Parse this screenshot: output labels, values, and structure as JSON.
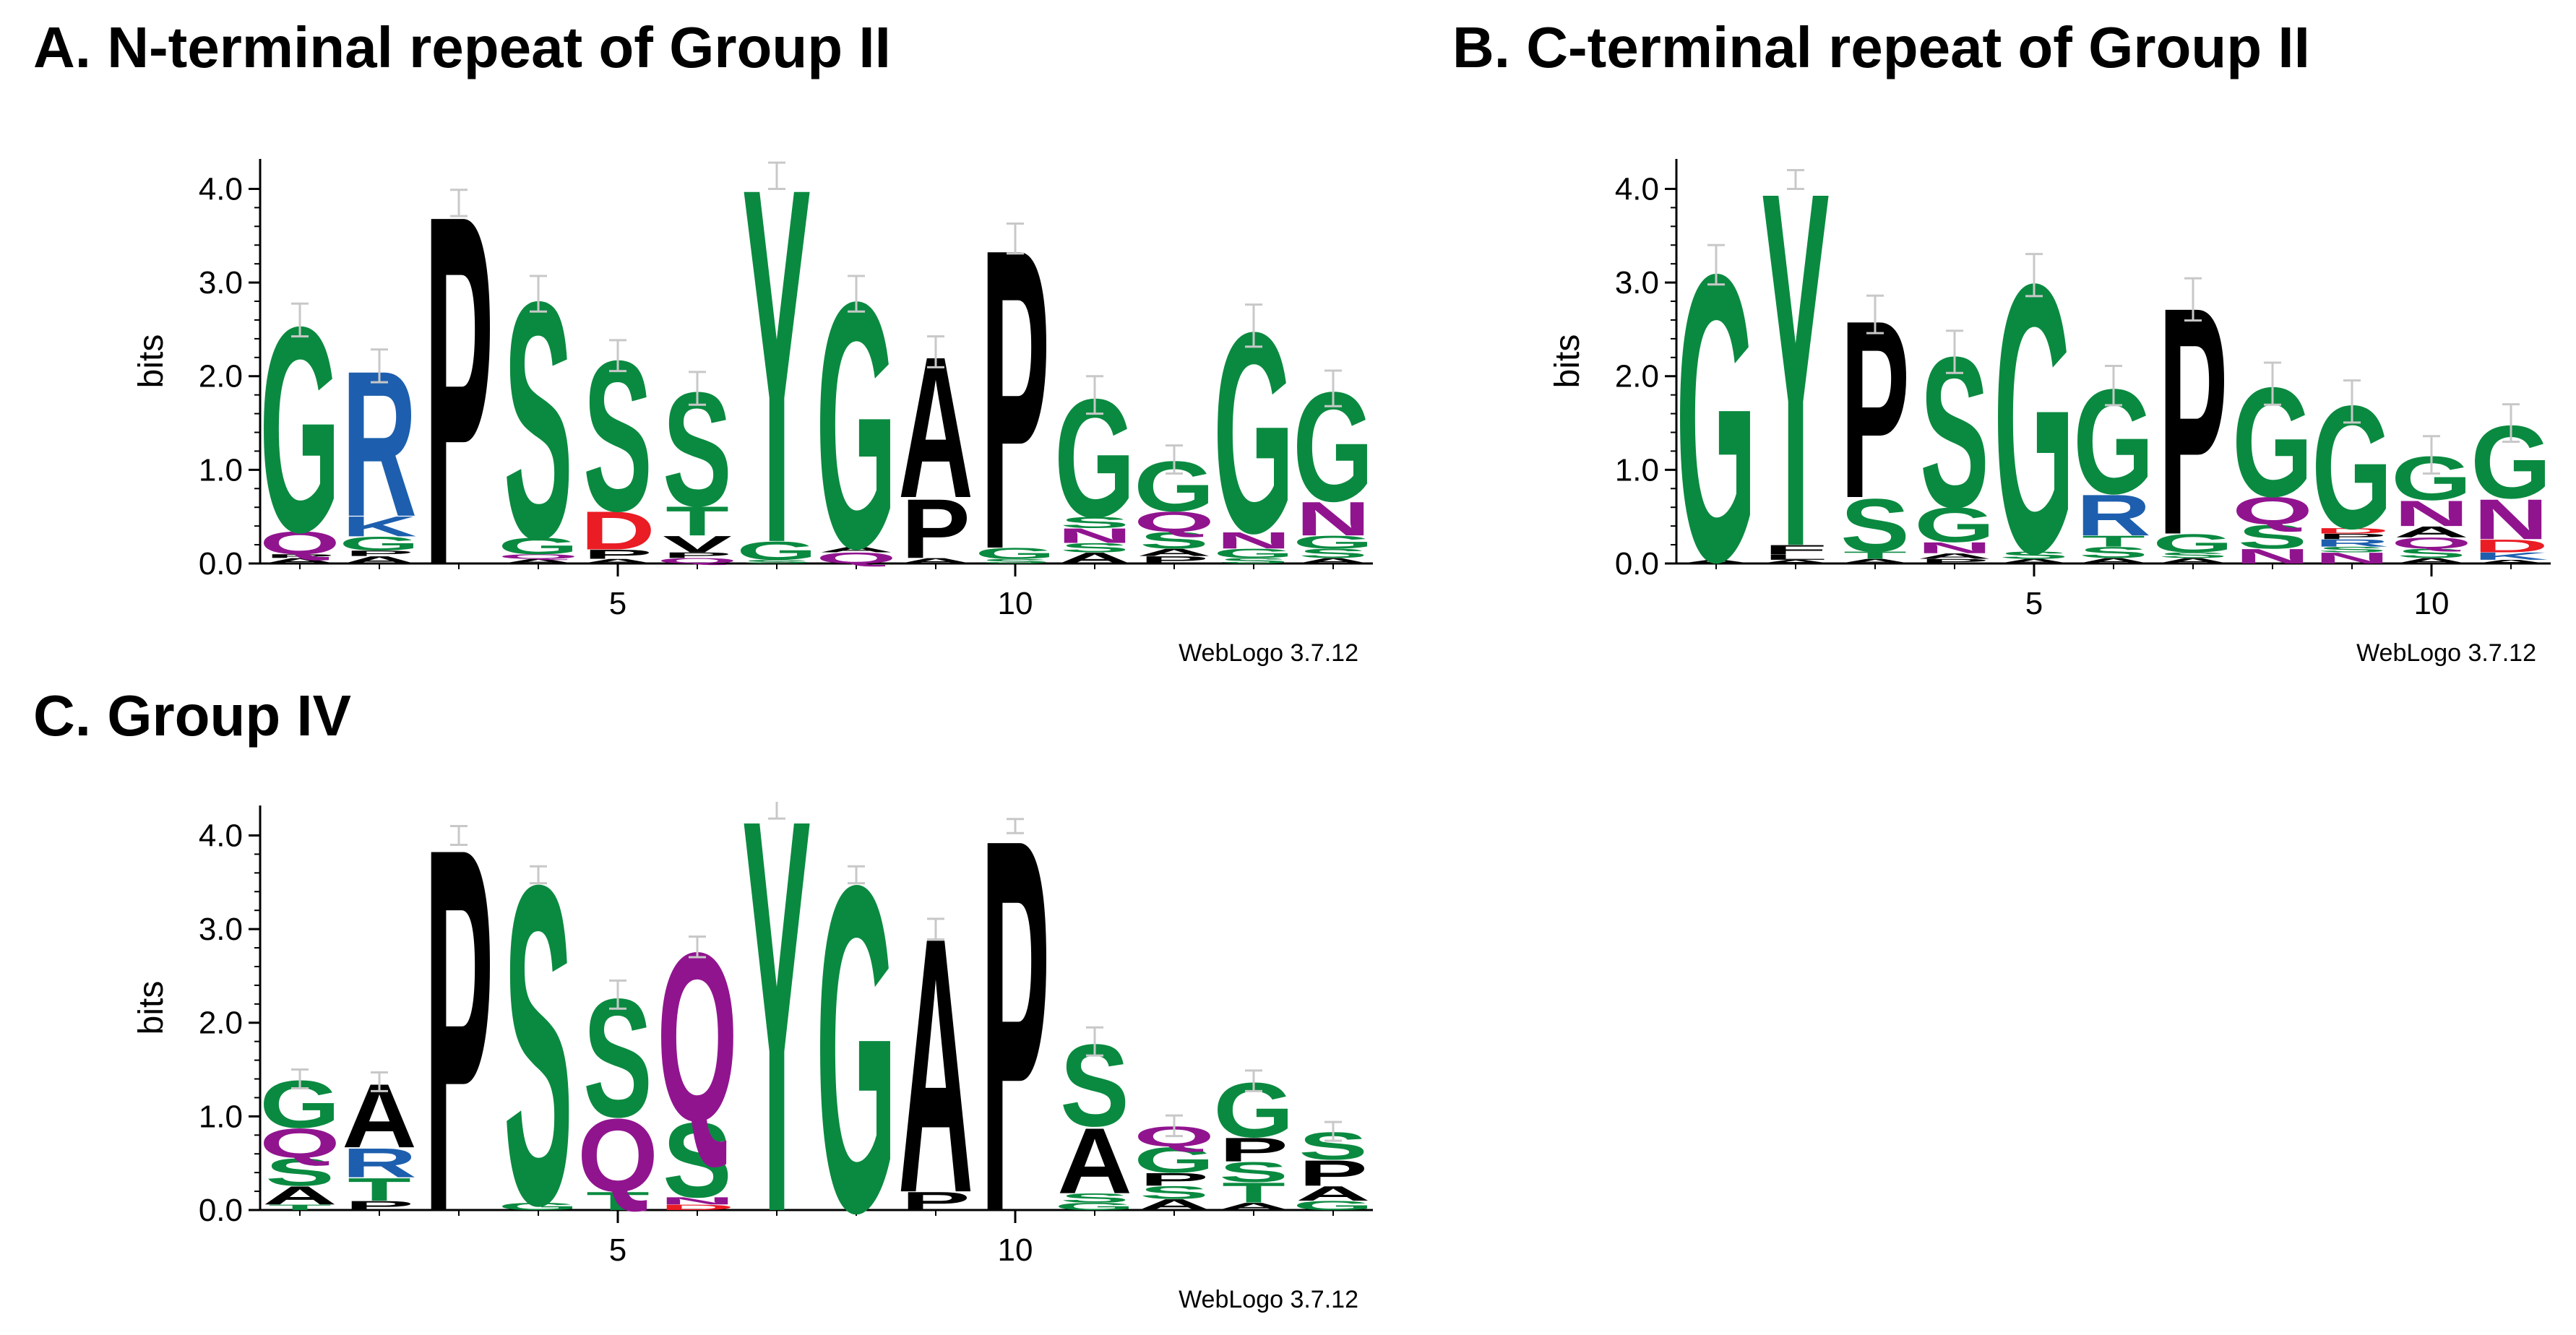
{
  "titles": {
    "a": "A. N-terminal repeat of Group II",
    "b": "B. C-terminal repeat of Group II",
    "c": "C. Group IV"
  },
  "colors": {
    "green": "#0a8a40",
    "black": "#000000",
    "blue": "#1d5fae",
    "purple": "#91148f",
    "red": "#ea1c24",
    "errorbar": "#c8c8c8"
  },
  "color_map": {
    "G": "green",
    "S": "green",
    "T": "green",
    "Y": "green",
    "C": "green",
    "P": "black",
    "A": "black",
    "V": "black",
    "L": "black",
    "I": "black",
    "F": "black",
    "M": "black",
    "W": "black",
    "R": "blue",
    "K": "blue",
    "H": "blue",
    "Q": "purple",
    "N": "purple",
    "D": "red",
    "E": "red"
  },
  "chart_data": [
    {
      "type": "sequence-logo",
      "ylabel": "bits",
      "ylim": [
        0,
        4.32
      ],
      "yticks": [
        "0.0",
        "1.0",
        "2.0",
        "3.0",
        "4.0"
      ],
      "xticks": [
        "5",
        "10"
      ],
      "xtick_positions": [
        5,
        10
      ],
      "footer": "WebLogo 3.7.12",
      "positions": [
        {
          "error": 0.35,
          "stack": [
            [
              "A",
              0.06
            ],
            [
              "P",
              0.04
            ],
            [
              "Q",
              0.25
            ],
            [
              "G",
              2.25
            ]
          ]
        },
        {
          "error": 0.35,
          "stack": [
            [
              "A",
              0.08
            ],
            [
              "P",
              0.06
            ],
            [
              "G",
              0.15
            ],
            [
              "K",
              0.22
            ],
            [
              "R",
              1.6
            ]
          ]
        },
        {
          "error": 0.28,
          "stack": [
            [
              "P",
              3.85
            ]
          ]
        },
        {
          "error": 0.38,
          "stack": [
            [
              "A",
              0.05
            ],
            [
              "Q",
              0.05
            ],
            [
              "G",
              0.18
            ],
            [
              "S",
              2.6
            ]
          ]
        },
        {
          "error": 0.33,
          "stack": [
            [
              "A",
              0.05
            ],
            [
              "P",
              0.1
            ],
            [
              "D",
              0.42
            ],
            [
              "S",
              1.65
            ]
          ]
        },
        {
          "error": 0.35,
          "stack": [
            [
              "Q",
              0.06
            ],
            [
              "P",
              0.06
            ],
            [
              "V",
              0.18
            ],
            [
              "T",
              0.32
            ],
            [
              "S",
              1.25
            ]
          ]
        },
        {
          "error": 0.28,
          "stack": [
            [
              "S",
              0.04
            ],
            [
              "G",
              0.2
            ],
            [
              "Y",
              3.9
            ]
          ]
        },
        {
          "error": 0.38,
          "stack": [
            [
              "Q",
              0.12
            ],
            [
              "A",
              0.06
            ],
            [
              "G",
              2.7
            ]
          ]
        },
        {
          "error": 0.33,
          "stack": [
            [
              "A",
              0.06
            ],
            [
              "P",
              0.65
            ],
            [
              "A",
              1.55
            ]
          ]
        },
        {
          "error": 0.32,
          "stack": [
            [
              "S",
              0.05
            ],
            [
              "G",
              0.12
            ],
            [
              "P",
              3.3
            ]
          ]
        },
        {
          "error": 0.4,
          "stack": [
            [
              "A",
              0.12
            ],
            [
              "S",
              0.1
            ],
            [
              "N",
              0.16
            ],
            [
              "S",
              0.12
            ],
            [
              "G",
              1.3
            ]
          ]
        },
        {
          "error": 0.3,
          "stack": [
            [
              "P",
              0.08
            ],
            [
              "A",
              0.08
            ],
            [
              "S",
              0.18
            ],
            [
              "Q",
              0.22
            ],
            [
              "G",
              0.55
            ]
          ]
        },
        {
          "error": 0.45,
          "stack": [
            [
              "S",
              0.06
            ],
            [
              "G",
              0.1
            ],
            [
              "N",
              0.18
            ],
            [
              "G",
              2.2
            ]
          ]
        },
        {
          "error": 0.38,
          "stack": [
            [
              "A",
              0.06
            ],
            [
              "S",
              0.1
            ],
            [
              "G",
              0.14
            ],
            [
              "N",
              0.37
            ],
            [
              "G",
              1.2
            ]
          ]
        }
      ]
    },
    {
      "type": "sequence-logo",
      "ylabel": "bits",
      "ylim": [
        0,
        4.32
      ],
      "yticks": [
        "0.0",
        "1.0",
        "2.0",
        "3.0",
        "4.0"
      ],
      "xticks": [
        "5",
        "10"
      ],
      "xtick_positions": [
        5,
        10
      ],
      "footer": "WebLogo 3.7.12",
      "positions": [
        {
          "error": 0.42,
          "stack": [
            [
              "A",
              0.04
            ],
            [
              "G",
              3.15
            ]
          ]
        },
        {
          "error": 0.2,
          "stack": [
            [
              "A",
              0.04
            ],
            [
              "L",
              0.06
            ],
            [
              "F",
              0.1
            ],
            [
              "Y",
              3.9
            ]
          ]
        },
        {
          "error": 0.4,
          "stack": [
            [
              "A",
              0.05
            ],
            [
              "T",
              0.08
            ],
            [
              "S",
              0.58
            ],
            [
              "P",
              1.95
            ]
          ]
        },
        {
          "error": 0.45,
          "stack": [
            [
              "P",
              0.05
            ],
            [
              "A",
              0.06
            ],
            [
              "N",
              0.12
            ],
            [
              "G",
              0.38
            ],
            [
              "S",
              1.65
            ]
          ]
        },
        {
          "error": 0.45,
          "stack": [
            [
              "A",
              0.05
            ],
            [
              "S",
              0.08
            ],
            [
              "G",
              2.95
            ]
          ]
        },
        {
          "error": 0.42,
          "stack": [
            [
              "A",
              0.06
            ],
            [
              "S",
              0.12
            ],
            [
              "T",
              0.12
            ],
            [
              "R",
              0.45
            ],
            [
              "G",
              1.15
            ]
          ]
        },
        {
          "error": 0.45,
          "stack": [
            [
              "A",
              0.06
            ],
            [
              "S",
              0.06
            ],
            [
              "G",
              0.2
            ],
            [
              "P",
              2.5
            ]
          ]
        },
        {
          "error": 0.45,
          "stack": [
            [
              "N",
              0.16
            ],
            [
              "S",
              0.26
            ],
            [
              "Q",
              0.3
            ],
            [
              "G",
              1.2
            ]
          ]
        },
        {
          "error": 0.45,
          "stack": [
            [
              "N",
              0.12
            ],
            [
              "S",
              0.06
            ],
            [
              "R",
              0.08
            ],
            [
              "P",
              0.06
            ],
            [
              "D",
              0.06
            ],
            [
              "G",
              1.35
            ]
          ]
        },
        {
          "error": 0.4,
          "stack": [
            [
              "A",
              0.06
            ],
            [
              "S",
              0.1
            ],
            [
              "Q",
              0.12
            ],
            [
              "A",
              0.12
            ],
            [
              "N",
              0.28
            ],
            [
              "G",
              0.48
            ]
          ]
        },
        {
          "error": 0.4,
          "stack": [
            [
              "A",
              0.04
            ],
            [
              "K",
              0.08
            ],
            [
              "D",
              0.14
            ],
            [
              "N",
              0.44
            ],
            [
              "G",
              0.8
            ]
          ]
        }
      ]
    },
    {
      "type": "sequence-logo",
      "ylabel": "bits",
      "ylim": [
        0,
        4.32
      ],
      "yticks": [
        "0.0",
        "1.0",
        "2.0",
        "3.0",
        "4.0"
      ],
      "xticks": [
        "5",
        "10"
      ],
      "xtick_positions": [
        5,
        10
      ],
      "footer": "WebLogo 3.7.12",
      "positions": [
        {
          "error": 0.2,
          "stack": [
            [
              "T",
              0.06
            ],
            [
              "A",
              0.2
            ],
            [
              "S",
              0.3
            ],
            [
              "Q",
              0.32
            ],
            [
              "G",
              0.52
            ]
          ]
        },
        {
          "error": 0.2,
          "stack": [
            [
              "P",
              0.1
            ],
            [
              "T",
              0.25
            ],
            [
              "R",
              0.32
            ],
            [
              "A",
              0.7
            ]
          ]
        },
        {
          "error": 0.2,
          "stack": [
            [
              "P",
              4.0
            ]
          ]
        },
        {
          "error": 0.18,
          "stack": [
            [
              "G",
              0.08
            ],
            [
              "S",
              3.5
            ]
          ]
        },
        {
          "error": 0.3,
          "stack": [
            [
              "T",
              0.2
            ],
            [
              "Q",
              0.8
            ],
            [
              "S",
              1.3
            ]
          ]
        },
        {
          "error": 0.22,
          "stack": [
            [
              "D",
              0.06
            ],
            [
              "N",
              0.08
            ],
            [
              "S",
              0.82
            ],
            [
              "Q",
              1.85
            ]
          ]
        },
        {
          "error": 0.28,
          "stack": [
            [
              "Y",
              4.32
            ]
          ]
        },
        {
          "error": 0.18,
          "stack": [
            [
              "G",
              3.58
            ]
          ]
        },
        {
          "error": 0.22,
          "stack": [
            [
              "P",
              0.2
            ],
            [
              "A",
              2.8
            ]
          ]
        },
        {
          "error": 0.15,
          "stack": [
            [
              "P",
              4.1
            ]
          ]
        },
        {
          "error": 0.3,
          "stack": [
            [
              "G",
              0.08
            ],
            [
              "S",
              0.1
            ],
            [
              "A",
              0.72
            ],
            [
              "S",
              0.9
            ]
          ]
        },
        {
          "error": 0.22,
          "stack": [
            [
              "A",
              0.12
            ],
            [
              "S",
              0.14
            ],
            [
              "P",
              0.14
            ],
            [
              "G",
              0.28
            ],
            [
              "Q",
              0.22
            ]
          ]
        },
        {
          "error": 0.22,
          "stack": [
            [
              "A",
              0.08
            ],
            [
              "T",
              0.22
            ],
            [
              "S",
              0.22
            ],
            [
              "P",
              0.26
            ],
            [
              "G",
              0.6
            ]
          ]
        },
        {
          "error": 0.2,
          "stack": [
            [
              "G",
              0.1
            ],
            [
              "A",
              0.16
            ],
            [
              "P",
              0.28
            ],
            [
              "S",
              0.3
            ]
          ]
        }
      ]
    }
  ]
}
